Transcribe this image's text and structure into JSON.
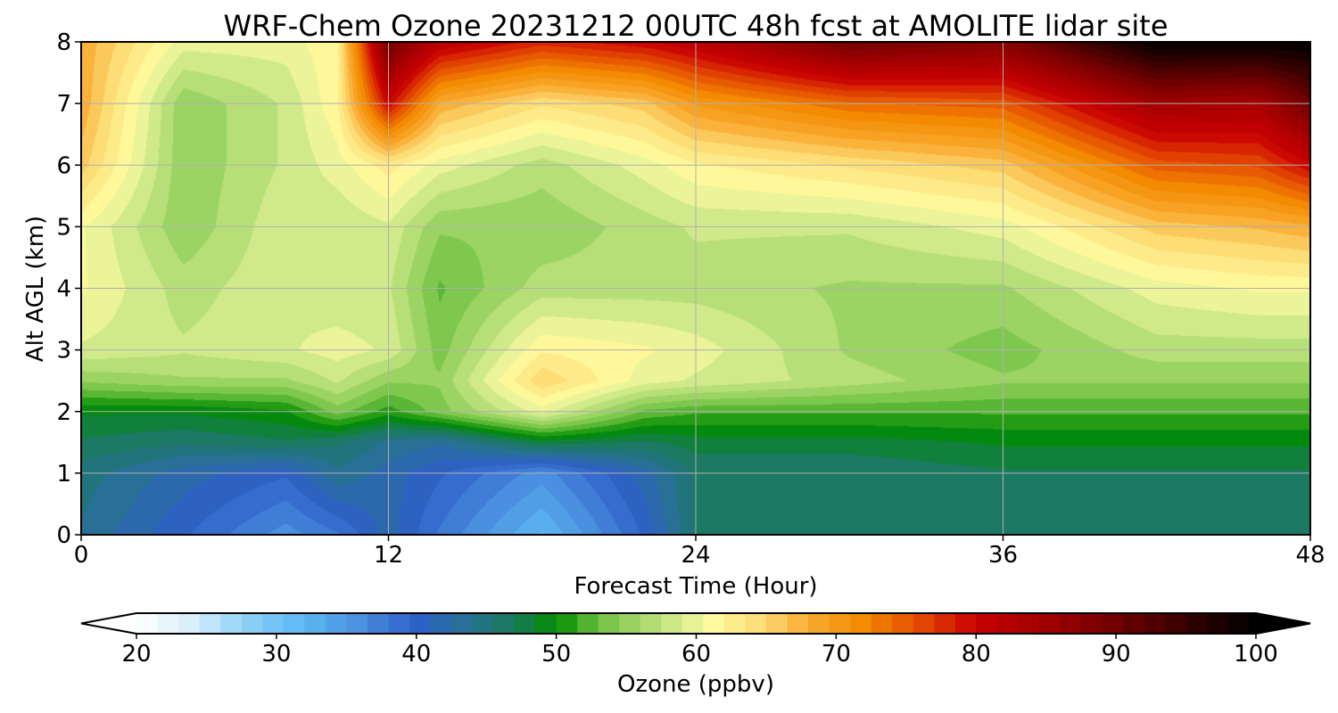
{
  "chart_data": {
    "type": "heatmap",
    "title": "WRF-Chem Ozone  20231212 00UTC 48h fcst at AMOLITE lidar site",
    "xlabel": "Forecast Time (Hour)",
    "ylabel": "Alt AGL (km)",
    "xlim": [
      0,
      48
    ],
    "ylim": [
      0,
      8
    ],
    "x_ticks": [
      0,
      12,
      24,
      36,
      48
    ],
    "y_ticks": [
      0,
      1,
      2,
      3,
      4,
      5,
      6,
      7,
      8
    ],
    "grid": true,
    "x": [
      0,
      4,
      8,
      10,
      12,
      14,
      18,
      22,
      24,
      30,
      36,
      42,
      46,
      48
    ],
    "y": [
      0,
      1,
      1.5,
      2,
      2.5,
      3,
      4,
      5,
      6,
      7,
      8
    ],
    "z": [
      [
        44,
        40,
        36,
        38,
        42,
        38,
        32,
        40,
        46,
        46,
        46,
        46,
        46,
        46
      ],
      [
        45,
        42,
        40,
        44,
        42,
        40,
        36,
        42,
        46,
        46,
        47,
        47,
        47,
        47
      ],
      [
        47,
        46,
        47,
        46,
        44,
        43,
        48,
        47,
        48,
        48,
        49,
        49,
        49,
        49
      ],
      [
        49,
        49,
        50,
        54,
        51,
        54,
        60,
        53,
        52,
        52,
        52,
        52,
        52,
        52
      ],
      [
        55,
        56,
        56,
        58,
        55,
        55,
        65,
        60,
        59,
        57,
        55,
        55,
        55,
        55
      ],
      [
        59,
        58,
        59,
        60,
        59,
        54,
        62,
        61,
        60,
        56,
        54,
        57,
        57,
        57
      ],
      [
        61,
        57,
        59,
        58,
        58,
        53,
        57,
        57,
        57,
        56,
        56,
        60,
        61,
        61
      ],
      [
        61,
        55,
        59,
        58,
        59,
        55,
        55,
        57,
        58,
        58,
        60,
        66,
        67,
        68
      ],
      [
        66,
        55,
        58,
        60,
        63,
        60,
        57,
        60,
        62,
        64,
        66,
        75,
        76,
        80
      ],
      [
        68,
        55,
        58,
        62,
        80,
        68,
        64,
        66,
        70,
        74,
        75,
        85,
        84,
        90
      ],
      [
        68,
        60,
        60,
        62,
        90,
        82,
        78,
        80,
        82,
        90,
        88,
        100,
        100,
        100
      ]
    ],
    "colorbar": {
      "label": "Ozone  (ppbv)",
      "min": 20,
      "max": 100,
      "ticks": [
        20,
        30,
        40,
        50,
        60,
        70,
        80,
        90,
        100
      ],
      "extend": "both",
      "colors": [
        {
          "v": 20,
          "c": "#ffffff"
        },
        {
          "v": 24,
          "c": "#d7eefc"
        },
        {
          "v": 29,
          "c": "#7cc8f5"
        },
        {
          "v": 32,
          "c": "#5cb8f3"
        },
        {
          "v": 36,
          "c": "#4a8fe0"
        },
        {
          "v": 40,
          "c": "#2e60c8"
        },
        {
          "v": 43,
          "c": "#2a6e9e"
        },
        {
          "v": 47,
          "c": "#1a7a5a"
        },
        {
          "v": 50,
          "c": "#008c00"
        },
        {
          "v": 53,
          "c": "#6cc040"
        },
        {
          "v": 56,
          "c": "#a6d86a"
        },
        {
          "v": 59,
          "c": "#d8ec90"
        },
        {
          "v": 61,
          "c": "#fefca0"
        },
        {
          "v": 65,
          "c": "#fcd870"
        },
        {
          "v": 68,
          "c": "#f9aa30"
        },
        {
          "v": 72,
          "c": "#f38a00"
        },
        {
          "v": 76,
          "c": "#e44a00"
        },
        {
          "v": 80,
          "c": "#c80000"
        },
        {
          "v": 85,
          "c": "#a00000"
        },
        {
          "v": 90,
          "c": "#700000"
        },
        {
          "v": 95,
          "c": "#350000"
        },
        {
          "v": 100,
          "c": "#000000"
        }
      ]
    }
  }
}
